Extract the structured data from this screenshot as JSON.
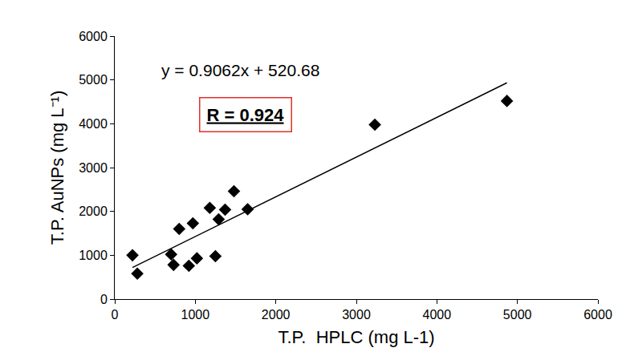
{
  "chart_data": {
    "type": "scatter",
    "x_label": "T.P.  HPLC (mg L-1)",
    "y_label": "T.P. AuNPs (mg L⁻¹)",
    "x": [
      220,
      280,
      700,
      730,
      800,
      920,
      970,
      1020,
      1180,
      1250,
      1290,
      1370,
      1480,
      1650,
      3230,
      4870
    ],
    "values": [
      1000,
      580,
      1020,
      780,
      1600,
      760,
      1730,
      930,
      2080,
      980,
      1820,
      2040,
      2460,
      2050,
      3980,
      4520
    ],
    "color": "#000000",
    "marker": "diamond",
    "trendline": {
      "slope": 0.9062,
      "intercept": 520.68,
      "x_start": 220,
      "x_end": 4870,
      "color": "#000000",
      "line_style": "solid"
    },
    "annotations": [
      {
        "text": "y = 0.9062x + 520.68"
      },
      {
        "text": "R = 0.924",
        "color": "#e0302a"
      }
    ],
    "xlim": [
      0,
      6000
    ],
    "xticks": [
      0,
      1000,
      2000,
      3000,
      4000,
      5000,
      6000
    ],
    "ylim": [
      0,
      6000
    ],
    "yticks": [
      0,
      1000,
      2000,
      3000,
      4000,
      5000,
      6000
    ],
    "grid": false
  }
}
